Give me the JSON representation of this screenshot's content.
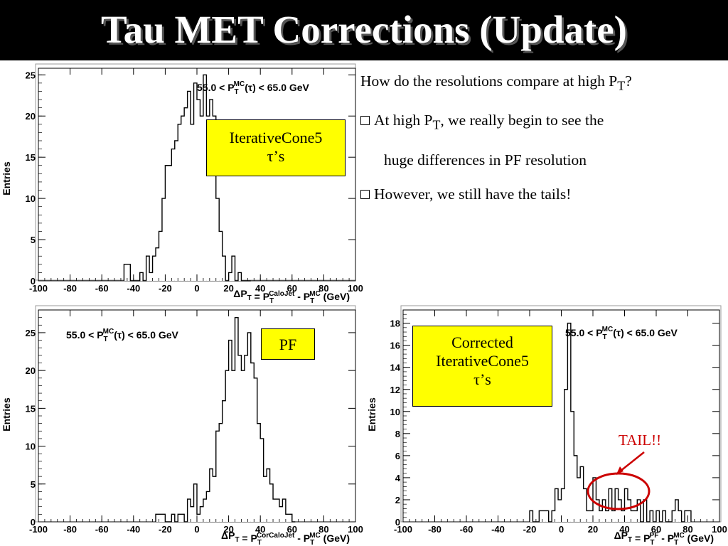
{
  "title": "Tau MET Corrections (Update)",
  "bullets": {
    "q": {
      "pre": "How do the resolutions compare at high P",
      "sub": "T",
      "post": "?"
    },
    "b1": {
      "pre": "At high P",
      "sub": "T",
      "post": ", we really begin to see the"
    },
    "b1_cont": "huge differences in PF resolution",
    "b2": "However, we still have the tails!"
  },
  "tail_label": "TAIL!!",
  "colors": {
    "title_bg": "#000000",
    "title_fg": "#ffffff",
    "box_bg": "#ffff00",
    "tail": "#cc0000",
    "plot_frame": "#999999"
  },
  "plots": [
    {
      "box_lines": [
        "IterativeCone5",
        "τ’s"
      ],
      "stat_label": "55.0 < P_T^MC(τ) < 65.0 GeV",
      "ylabel": "Entries",
      "xlabel_parts": [
        "ΔP",
        "T",
        " = P",
        "T",
        "CaloJet",
        " - P",
        "T",
        "MC",
        " (GeV)"
      ]
    },
    {
      "box_lines": [
        "PF"
      ],
      "stat_label": "55.0 < P_T^MC(τ) < 65.0 GeV",
      "ylabel": "Entries",
      "xlabel_parts": [
        "ΔP",
        "T",
        " = P",
        "T",
        "CorCaloJet",
        " - P",
        "T",
        "MC",
        " (GeV)"
      ]
    },
    {
      "box_lines": [
        "Corrected",
        "IterativeCone5",
        "τ’s"
      ],
      "stat_label": "55.0 < P_T^MC(τ) < 65.0 GeV",
      "ylabel": "Entries",
      "xlabel_parts": [
        "ΔP",
        "T",
        " = P",
        "T",
        "PF",
        " - P",
        "T",
        "MC",
        " (GeV)"
      ]
    }
  ],
  "chart_data": [
    {
      "type": "histogram",
      "title": "",
      "xlabel": "ΔP_T = P_T^CaloJet - P_T^MC (GeV)",
      "ylabel": "Entries",
      "annotation": "55.0 < P_T^MC(τ) < 65.0 GeV",
      "xlim": [
        -100,
        100
      ],
      "ylim": [
        0,
        25.8
      ],
      "xticks": [
        -100,
        -80,
        -60,
        -40,
        -20,
        0,
        20,
        40,
        60,
        80,
        100
      ],
      "yticks": [
        0,
        5,
        10,
        15,
        20,
        25
      ],
      "bin_width": 2,
      "bin_start": -46,
      "values": [
        2,
        2,
        0,
        0,
        0,
        1,
        0,
        3,
        1,
        3,
        4,
        6,
        10,
        14,
        14,
        16,
        17,
        19,
        20,
        21,
        23,
        19,
        24,
        22,
        20,
        25,
        20,
        22,
        20,
        10,
        6,
        3,
        0,
        1,
        3,
        0,
        1,
        0,
        0,
        0
      ]
    },
    {
      "type": "histogram",
      "title": "",
      "xlabel": "ΔP_T = P_T^CorCaloJet - P_T^MC (GeV)",
      "ylabel": "Entries",
      "annotation": "55.0 < P_T^MC(τ) < 65.0 GeV",
      "xlim": [
        -100,
        100
      ],
      "ylim": [
        0,
        28
      ],
      "xticks": [
        -100,
        -80,
        -60,
        -40,
        -20,
        0,
        20,
        40,
        60,
        80,
        100
      ],
      "yticks": [
        0,
        5,
        10,
        15,
        20,
        25
      ],
      "bin_width": 2,
      "bin_start": -26,
      "values": [
        1,
        1,
        1,
        0,
        0,
        1,
        0,
        1,
        1,
        0,
        3,
        2,
        5,
        1,
        2,
        3,
        4,
        7,
        6,
        12,
        13,
        16,
        20,
        24,
        20,
        27,
        22,
        20,
        22,
        25,
        21,
        19,
        13,
        11,
        6,
        7,
        5,
        3,
        3,
        2,
        3,
        1,
        1,
        0
      ]
    },
    {
      "type": "histogram",
      "title": "",
      "xlabel": "ΔP_T = P_T^PF - P_T^MC (GeV)",
      "ylabel": "Entries",
      "annotation": "55.0 < P_T^MC(τ) < 65.0 GeV",
      "xlim": [
        -100,
        100
      ],
      "ylim": [
        0,
        19.2
      ],
      "xticks": [
        -100,
        -80,
        -60,
        -40,
        -20,
        0,
        20,
        40,
        60,
        80,
        100
      ],
      "yticks": [
        0,
        2,
        4,
        6,
        8,
        10,
        12,
        14,
        16,
        18
      ],
      "bin_width": 2,
      "bin_start": -20,
      "values": [
        1,
        0,
        0,
        1,
        1,
        1,
        0,
        1,
        3,
        2,
        3,
        12,
        18,
        10,
        6,
        4,
        5,
        3,
        1,
        1,
        4,
        2,
        1,
        2,
        1,
        3,
        1,
        3,
        2,
        1,
        3,
        2,
        1,
        1,
        2,
        0,
        2,
        0,
        1,
        0,
        1,
        0,
        1,
        0,
        0,
        1,
        2,
        1,
        0,
        1,
        1
      ]
    }
  ]
}
